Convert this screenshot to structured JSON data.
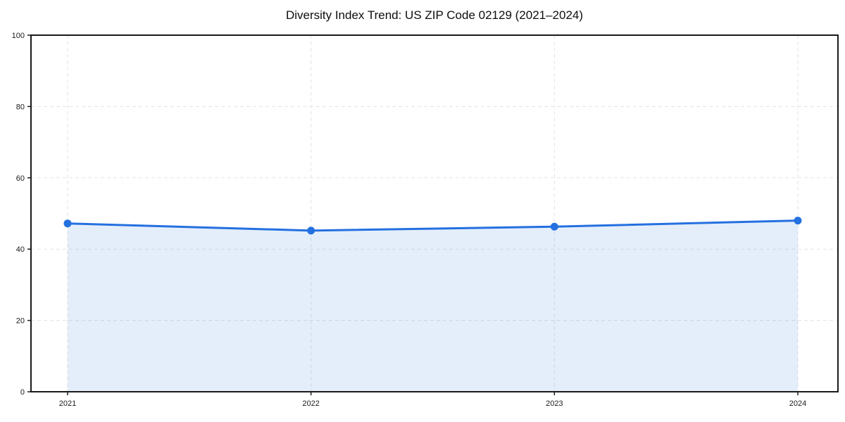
{
  "chart_data": {
    "type": "area",
    "title": "Diversity Index Trend: US ZIP Code 02129 (2021–2024)",
    "xlabel": "",
    "ylabel": "",
    "x": [
      2021,
      2022,
      2023,
      2024
    ],
    "x_tick_labels": [
      "2021",
      "2022",
      "2023",
      "2024"
    ],
    "series": [
      {
        "name": "Diversity Index",
        "values": [
          47.2,
          45.2,
          46.3,
          48.0
        ]
      }
    ],
    "ylim": [
      0,
      100
    ],
    "yticks": [
      0,
      20,
      40,
      60,
      80,
      100
    ],
    "grid": true,
    "grid_style": "dashed",
    "legend": "none",
    "marker": "circle",
    "colors": {
      "line": "#2470e0",
      "marker": "#2470e0",
      "fill": "rgba(36, 112, 224, 0.12)",
      "grid": "#e3e3e3",
      "axis": "#1a1a1a",
      "tick_label": "#1a1a1a",
      "background": "#ffffff"
    }
  }
}
